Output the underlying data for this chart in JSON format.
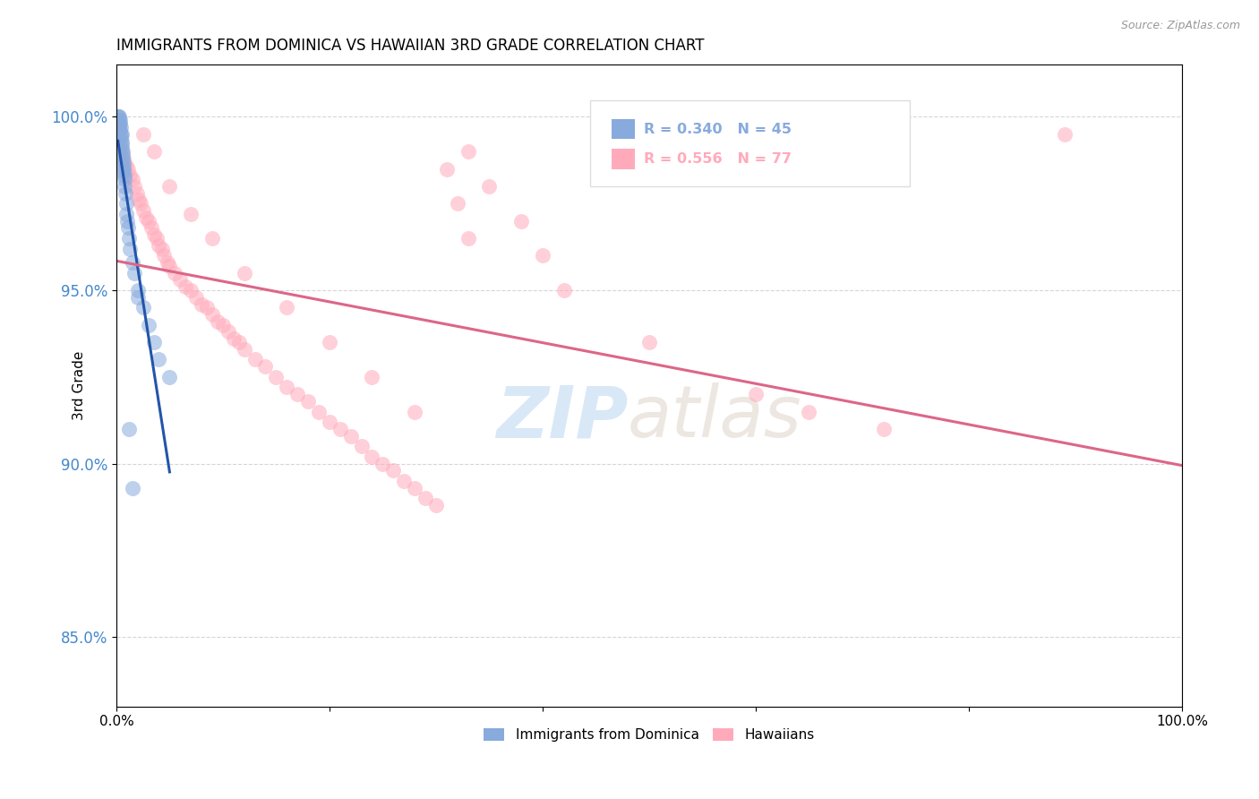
{
  "title": "IMMIGRANTS FROM DOMINICA VS HAWAIIAN 3RD GRADE CORRELATION CHART",
  "source_text": "Source: ZipAtlas.com",
  "ylabel": "3rd Grade",
  "xlim": [
    0.0,
    100.0
  ],
  "ylim": [
    83.0,
    101.5
  ],
  "yticks": [
    85.0,
    90.0,
    95.0,
    100.0
  ],
  "xticks": [
    0.0,
    20.0,
    40.0,
    60.0,
    80.0,
    100.0
  ],
  "xticklabels": [
    "0.0%",
    "",
    "",
    "",
    "",
    "100.0%"
  ],
  "yticklabels": [
    "85.0%",
    "90.0%",
    "95.0%",
    "100.0%"
  ],
  "blue_R": 0.34,
  "blue_N": 45,
  "pink_R": 0.556,
  "pink_N": 77,
  "blue_color": "#88AADD",
  "pink_color": "#FFAABB",
  "blue_line_color": "#2255AA",
  "pink_line_color": "#DD6688",
  "watermark_zip": "ZIP",
  "watermark_atlas": "atlas",
  "legend_blue_label": "Immigrants from Dominica",
  "legend_pink_label": "Hawaiians",
  "blue_x": [
    0.15,
    0.18,
    0.2,
    0.22,
    0.25,
    0.28,
    0.3,
    0.32,
    0.35,
    0.38,
    0.4,
    0.42,
    0.45,
    0.48,
    0.5,
    0.52,
    0.55,
    0.58,
    0.6,
    0.62,
    0.65,
    0.68,
    0.7,
    0.72,
    0.75,
    0.78,
    0.8,
    0.85,
    0.9,
    0.95,
    1.0,
    1.1,
    1.2,
    1.3,
    1.5,
    1.7,
    2.0,
    2.5,
    3.0,
    3.5,
    4.0,
    5.0,
    1.2,
    2.0,
    1.5
  ],
  "blue_y": [
    99.8,
    100.0,
    100.0,
    99.9,
    100.0,
    99.8,
    99.7,
    99.9,
    99.8,
    99.6,
    99.5,
    99.7,
    99.4,
    99.3,
    99.2,
    99.5,
    99.1,
    98.9,
    99.0,
    98.8,
    98.7,
    98.5,
    98.6,
    98.4,
    98.3,
    98.2,
    98.0,
    97.8,
    97.5,
    97.2,
    97.0,
    96.8,
    96.5,
    96.2,
    95.8,
    95.5,
    95.0,
    94.5,
    94.0,
    93.5,
    93.0,
    92.5,
    91.0,
    94.8,
    89.3
  ],
  "pink_x": [
    0.3,
    0.5,
    0.7,
    0.9,
    1.1,
    1.3,
    1.5,
    1.7,
    1.9,
    2.1,
    2.3,
    2.5,
    2.8,
    3.0,
    3.3,
    3.5,
    3.8,
    4.0,
    4.3,
    4.5,
    4.8,
    5.0,
    5.5,
    6.0,
    6.5,
    7.0,
    7.5,
    8.0,
    8.5,
    9.0,
    9.5,
    10.0,
    10.5,
    11.0,
    11.5,
    12.0,
    13.0,
    14.0,
    15.0,
    16.0,
    17.0,
    18.0,
    19.0,
    20.0,
    21.0,
    22.0,
    23.0,
    24.0,
    25.0,
    26.0,
    27.0,
    28.0,
    29.0,
    30.0,
    31.0,
    32.0,
    33.0,
    2.5,
    3.5,
    5.0,
    7.0,
    9.0,
    12.0,
    16.0,
    20.0,
    24.0,
    28.0,
    33.0,
    35.0,
    38.0,
    40.0,
    42.0,
    50.0,
    60.0,
    65.0,
    72.0,
    89.0
  ],
  "pink_y": [
    99.2,
    99.0,
    98.8,
    98.6,
    98.5,
    98.3,
    98.2,
    98.0,
    97.8,
    97.6,
    97.5,
    97.3,
    97.1,
    97.0,
    96.8,
    96.6,
    96.5,
    96.3,
    96.2,
    96.0,
    95.8,
    95.7,
    95.5,
    95.3,
    95.1,
    95.0,
    94.8,
    94.6,
    94.5,
    94.3,
    94.1,
    94.0,
    93.8,
    93.6,
    93.5,
    93.3,
    93.0,
    92.8,
    92.5,
    92.2,
    92.0,
    91.8,
    91.5,
    91.2,
    91.0,
    90.8,
    90.5,
    90.2,
    90.0,
    89.8,
    89.5,
    89.3,
    89.0,
    88.8,
    98.5,
    97.5,
    96.5,
    99.5,
    99.0,
    98.0,
    97.2,
    96.5,
    95.5,
    94.5,
    93.5,
    92.5,
    91.5,
    99.0,
    98.0,
    97.0,
    96.0,
    95.0,
    93.5,
    92.0,
    91.5,
    91.0,
    99.5
  ]
}
